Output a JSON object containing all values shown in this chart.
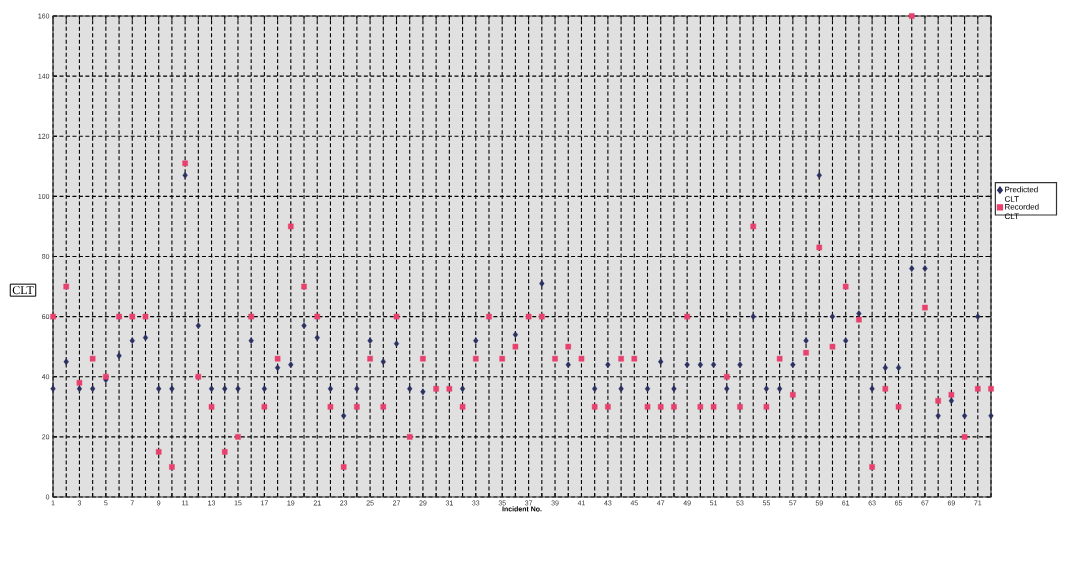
{
  "chart_data": {
    "type": "scatter",
    "xlabel": "Incident No.",
    "ylabel": "CLT",
    "x": [
      1,
      2,
      3,
      4,
      5,
      6,
      7,
      8,
      9,
      10,
      11,
      12,
      13,
      14,
      15,
      16,
      17,
      18,
      19,
      20,
      21,
      22,
      23,
      24,
      25,
      26,
      27,
      28,
      29,
      30,
      31,
      32,
      33,
      34,
      35,
      36,
      37,
      38,
      39,
      40,
      41,
      42,
      43,
      44,
      45,
      46,
      47,
      48,
      49,
      50,
      51,
      52,
      53,
      54,
      55,
      56,
      57,
      58,
      59,
      60,
      61,
      62,
      63,
      64,
      65,
      66,
      67,
      68,
      69,
      70,
      71,
      72
    ],
    "series": [
      {
        "name": "Predicted CLT",
        "color": "#2a3060",
        "marker": "diamond",
        "values": [
          36,
          45,
          36,
          36,
          39,
          47,
          52,
          53,
          36,
          36,
          107,
          57,
          36,
          36,
          36,
          52,
          36,
          43,
          44,
          57,
          53,
          36,
          27,
          36,
          52,
          45,
          51,
          36,
          35,
          null,
          null,
          36,
          52,
          null,
          null,
          54,
          null,
          71,
          null,
          44,
          null,
          36,
          44,
          36,
          null,
          36,
          45,
          36,
          44,
          44,
          44,
          36,
          44,
          60,
          36,
          36,
          44,
          52,
          107,
          60,
          52,
          61,
          36,
          43,
          43,
          76,
          76,
          27,
          32,
          27,
          60,
          27
        ]
      },
      {
        "name": "Recorded CLT",
        "color": "#e8416e",
        "marker": "square",
        "values": [
          60,
          70,
          38,
          46,
          40,
          60,
          60,
          60,
          15,
          10,
          111,
          40,
          30,
          15,
          20,
          60,
          30,
          46,
          90,
          70,
          60,
          30,
          10,
          30,
          46,
          30,
          60,
          20,
          46,
          36,
          36,
          30,
          46,
          60,
          46,
          50,
          60,
          60,
          46,
          50,
          46,
          30,
          30,
          46,
          46,
          30,
          30,
          30,
          60,
          30,
          30,
          40,
          30,
          90,
          30,
          46,
          34,
          48,
          83,
          50,
          70,
          59,
          10,
          36,
          30,
          160,
          63,
          32,
          34,
          20,
          36,
          36
        ]
      }
    ],
    "xlim": [
      1,
      72
    ],
    "xticks": [
      1,
      {
        "value": 2,
        "label": null
      },
      3,
      {
        "value": 4,
        "label": null
      },
      5,
      {
        "value": 6,
        "label": null
      },
      7,
      {
        "value": 8,
        "label": null
      },
      9,
      {
        "value": 10,
        "label": null
      },
      11,
      {
        "value": 12,
        "label": null
      },
      13,
      {
        "value": 14,
        "label": null
      },
      15,
      {
        "value": 16,
        "label": null
      },
      17,
      {
        "value": 18,
        "label": null
      },
      19,
      {
        "value": 20,
        "label": null
      },
      21,
      {
        "value": 22,
        "label": null
      },
      23,
      {
        "value": 24,
        "label": null
      },
      25,
      {
        "value": 26,
        "label": null
      },
      27,
      {
        "value": 28,
        "label": null
      },
      29,
      {
        "value": 30,
        "label": null
      },
      31,
      {
        "value": 32,
        "label": null
      },
      33,
      {
        "value": 34,
        "label": null
      },
      35,
      {
        "value": 36,
        "label": null
      },
      37,
      {
        "value": 38,
        "label": null
      },
      39,
      {
        "value": 40,
        "label": null
      },
      41,
      {
        "value": 42,
        "label": null
      },
      43,
      {
        "value": 44,
        "label": null
      },
      45,
      {
        "value": 46,
        "label": null
      },
      47,
      {
        "value": 48,
        "label": null
      },
      49,
      {
        "value": 50,
        "label": null
      },
      51,
      {
        "value": 52,
        "label": null
      },
      53,
      {
        "value": 54,
        "label": null
      },
      55,
      {
        "value": 56,
        "label": null
      },
      57,
      {
        "value": 58,
        "label": null
      },
      59,
      {
        "value": 60,
        "label": null
      },
      61,
      {
        "value": 62,
        "label": null
      },
      63,
      {
        "value": 64,
        "label": null
      },
      65,
      {
        "value": 66,
        "label": null
      },
      67,
      {
        "value": 68,
        "label": null
      },
      69,
      {
        "value": 70,
        "label": null
      },
      71,
      {
        "value": 72,
        "label": null
      }
    ],
    "ylim": [
      0,
      160
    ],
    "yticks": [
      0,
      20,
      40,
      60,
      80,
      100,
      120,
      140,
      160
    ],
    "grid": true,
    "legend": "right"
  }
}
